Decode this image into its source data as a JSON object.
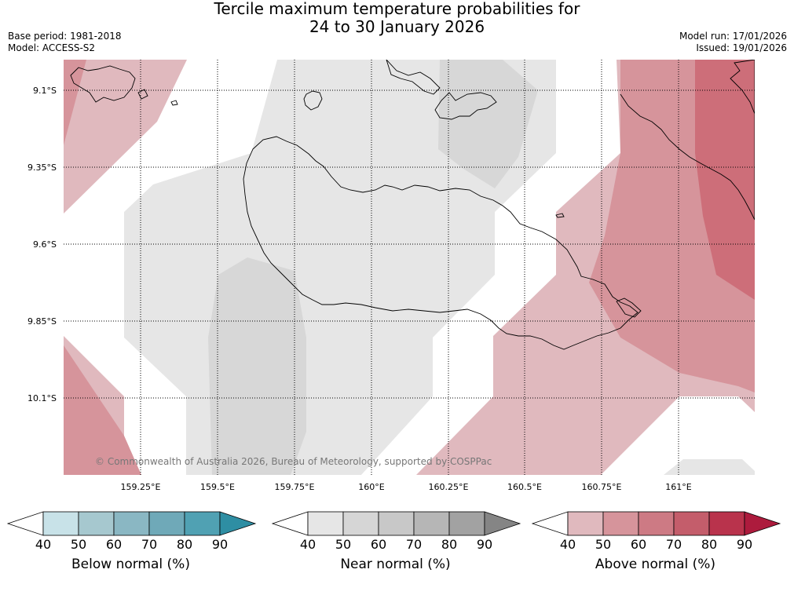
{
  "title_line1": "Tercile maximum temperature probabilities for",
  "title_line2": "24 to 30 January 2026",
  "meta_left": [
    "Base period: 1981-2018",
    "Model: ACCESS-S2"
  ],
  "meta_right": [
    "Model run: 17/01/2026",
    "Issued: 19/01/2026"
  ],
  "copyright": "© Commonwealth of Australia 2026, Bureau of Meteorology, supported by COSPPac",
  "lat_labels": [
    "9.1°S",
    "9.35°S",
    "9.6°S",
    "9.85°S",
    "10.1°S"
  ],
  "lon_labels": [
    "159.25°E",
    "159.5°E",
    "159.75°E",
    "160°E",
    "160.25°E",
    "160.5°E",
    "160.75°E",
    "161°E"
  ],
  "colorbars": [
    {
      "label": "Below normal (%)",
      "ticks": [
        "40",
        "50",
        "60",
        "70",
        "80",
        "90"
      ],
      "colors": [
        "#c8e2e8",
        "#a6c8cf",
        "#8ab7c3",
        "#6fa9b8",
        "#50a1b3",
        "#2e8ea3"
      ]
    },
    {
      "label": "Near normal (%)",
      "ticks": [
        "40",
        "50",
        "60",
        "70",
        "80",
        "90"
      ],
      "colors": [
        "#e6e6e6",
        "#d6d6d6",
        "#c8c8c8",
        "#b6b6b6",
        "#a2a2a2",
        "#858585"
      ]
    },
    {
      "label": "Above normal (%)",
      "ticks": [
        "40",
        "50",
        "60",
        "70",
        "80",
        "90"
      ],
      "colors": [
        "#e0b9be",
        "#d6949b",
        "#cd7a84",
        "#c45d6b",
        "#b9334c",
        "#ad1b3d"
      ]
    }
  ]
}
